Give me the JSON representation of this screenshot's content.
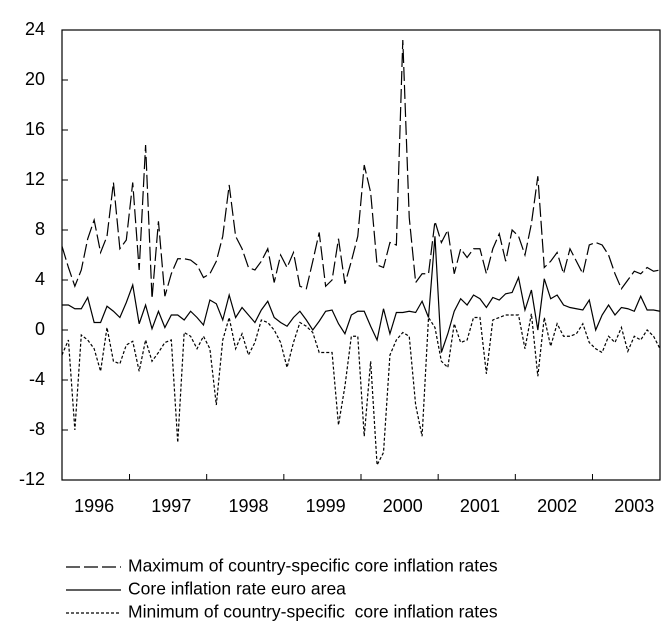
{
  "chart_data": {
    "type": "line",
    "categories": [
      null,
      null,
      null,
      null,
      null,
      "1996",
      null,
      null,
      null,
      null,
      null,
      null,
      null,
      null,
      null,
      null,
      null,
      "1997",
      null,
      null,
      null,
      null,
      null,
      null,
      null,
      null,
      null,
      null,
      null,
      "1998",
      null,
      null,
      null,
      null,
      null,
      null,
      null,
      null,
      null,
      null,
      null,
      "1999",
      null,
      null,
      null,
      null,
      null,
      null,
      null,
      null,
      null,
      null,
      null,
      "2000",
      null,
      null,
      null,
      null,
      null,
      null,
      null,
      null,
      null,
      null,
      null,
      "2001",
      null,
      null,
      null,
      null,
      null,
      null,
      null,
      null,
      null,
      null,
      null,
      "2002",
      null,
      null,
      null,
      null,
      null,
      null,
      null,
      null,
      null,
      null,
      null,
      "2003",
      null,
      null,
      null,
      null
    ],
    "series": [
      {
        "name": "Maximum of country-specific core inflation rates",
        "color": "#000000",
        "style": "dashed",
        "values": [
          6.7,
          5,
          3.5,
          4.8,
          7.3,
          8.8,
          6.2,
          7.5,
          11.8,
          6.5,
          7.2,
          11.8,
          4.8,
          14.8,
          2.5,
          8.7,
          2.7,
          4.5,
          5.7,
          5.7,
          5.6,
          5.2,
          4.2,
          4.5,
          5.5,
          7.5,
          11.6,
          7.5,
          6.5,
          5,
          4.8,
          5.5,
          6.5,
          3.8,
          6,
          5,
          6.2,
          3.5,
          3.3,
          5.5,
          7.8,
          3.5,
          4,
          7.3,
          3.7,
          5.5,
          7.5,
          13.2,
          11,
          5.2,
          5,
          7,
          6.8,
          23.2,
          9,
          3.8,
          4.5,
          4.5,
          8.7,
          7,
          8,
          4.5,
          6.5,
          5.8,
          6.5,
          6.5,
          4.5,
          6.5,
          7.7,
          5.5,
          8,
          7.5,
          6,
          8.5,
          12.3,
          5,
          5.5,
          6.2,
          4.5,
          6.5,
          5.5,
          4.5,
          6.8,
          7,
          6.8,
          6,
          4.5,
          3.3,
          4,
          4.7,
          4.5,
          5,
          4.7,
          4.8
        ]
      },
      {
        "name": "Core inflation rate euro area",
        "color": "#000000",
        "style": "solid",
        "values": [
          2,
          2,
          1.7,
          1.7,
          2.6,
          0.6,
          0.6,
          1.9,
          1.5,
          1,
          2.2,
          3.6,
          0.5,
          2,
          0.1,
          1.5,
          0.2,
          1.2,
          1.2,
          0.8,
          1.5,
          1,
          0.4,
          2.4,
          2.1,
          0.8,
          2.8,
          1,
          1.8,
          1.2,
          0.6,
          1.6,
          2.3,
          1,
          0.6,
          0.3,
          1,
          1.5,
          0.8,
          0,
          0.7,
          1.5,
          1.6,
          0.5,
          -0.3,
          1.2,
          1.5,
          1.5,
          0.3,
          -0.8,
          1.7,
          -0.3,
          1.4,
          1.4,
          1.5,
          1.4,
          2.3,
          1,
          7.5,
          -1.8,
          -0.3,
          1.5,
          2.5,
          2,
          2.8,
          2.5,
          1.8,
          2.6,
          2.4,
          2.9,
          3,
          4.2,
          1.6,
          3.2,
          0,
          4.1,
          2.5,
          2.8,
          2,
          1.8,
          1.7,
          1.6,
          2.4,
          0,
          1.2,
          2,
          1.2,
          1.8,
          1.7,
          1.5,
          2.7,
          1.6,
          1.6,
          1.5
        ]
      },
      {
        "name": "Minimum of country-specific  core inflation rates",
        "color": "#000000",
        "style": "dotted",
        "values": [
          -2,
          -0.8,
          -8,
          -0.4,
          -0.8,
          -1.5,
          -3.3,
          0.2,
          -2.5,
          -2.7,
          -1.2,
          -0.9,
          -3.3,
          -0.8,
          -2.5,
          -1.8,
          -1,
          -0.8,
          -9,
          -0.2,
          -0.5,
          -1.5,
          -0.5,
          -1.5,
          -6,
          -0.8,
          1,
          -1.5,
          -0.3,
          -2,
          -1,
          0.8,
          0.6,
          0,
          -1,
          -3,
          -1,
          0.6,
          0.3,
          -0.2,
          -1.8,
          -1.8,
          -1.8,
          -7.6,
          -4.5,
          -0.5,
          -0.5,
          -8.5,
          -2.5,
          -10.8,
          -9.8,
          -2,
          -0.8,
          -0.2,
          -0.5,
          -6,
          -8.5,
          1,
          0.2,
          -2.5,
          -3,
          0.5,
          -1,
          -0.8,
          1,
          1,
          -3.5,
          0.8,
          1,
          1.2,
          1.2,
          1.2,
          -1.5,
          1.3,
          -3.7,
          1,
          -1.3,
          0.5,
          -0.5,
          -0.5,
          -0.3,
          0.5,
          -1,
          -1.5,
          -1.8,
          -0.5,
          -1,
          0.2,
          -1.7,
          -0.5,
          -0.8,
          0,
          -0.5,
          -1.5
        ]
      }
    ],
    "ylim": [
      -12,
      24
    ],
    "yticks": [
      -12,
      -8,
      -4,
      0,
      4,
      8,
      12,
      16,
      20,
      24
    ]
  }
}
